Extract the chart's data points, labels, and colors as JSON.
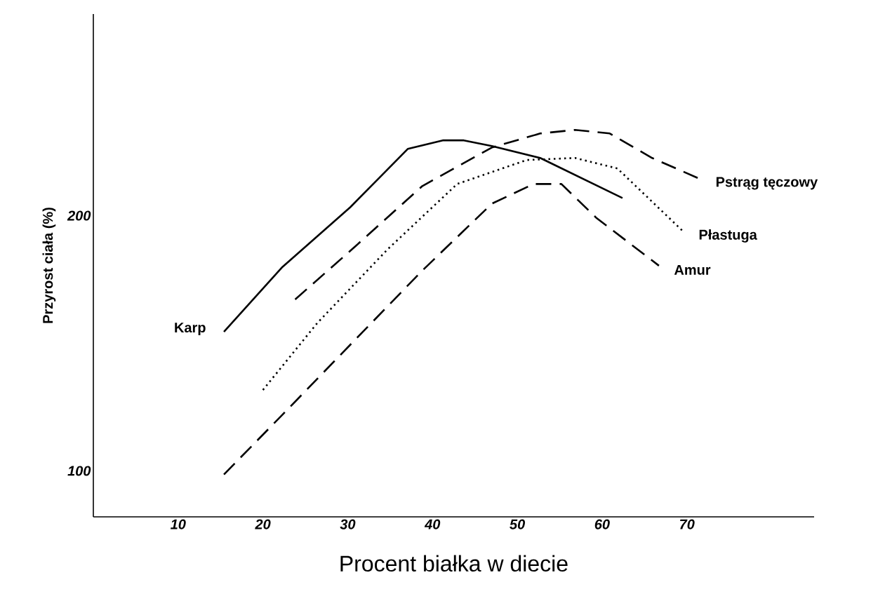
{
  "chart_data": {
    "type": "line",
    "xlabel": "Procent białka w diecie",
    "ylabel": "Przyrost ciała (%)",
    "xlim": [
      0,
      85
    ],
    "ylim": [
      82,
      279
    ],
    "xticks": [
      10,
      20,
      30,
      40,
      50,
      60,
      70
    ],
    "yticks": [
      100,
      200
    ],
    "grid": false,
    "marker": "none",
    "series": [
      {
        "name": "Karp",
        "color": "#000000",
        "line_style": "solid",
        "x": [
          15.4,
          22.3,
          30.3,
          37.1,
          41.2,
          43.7,
          47,
          52.7,
          62.4
        ],
        "values": [
          154.5,
          179.9,
          203.3,
          226.2,
          229.5,
          229.5,
          227.3,
          222.6,
          206.9
        ]
      },
      {
        "name": "Pstrąg tęczowy",
        "color": "#000000",
        "line_style": "dashed",
        "x": [
          23.8,
          30.5,
          38.8,
          47,
          52.7,
          56.8,
          60.9,
          65.9,
          71.6
        ],
        "values": [
          167.2,
          186.8,
          211.6,
          226.7,
          232.2,
          233.6,
          232.2,
          222.6,
          214.3
        ]
      },
      {
        "name": "Płastuga",
        "color": "#000000",
        "line_style": "dotted",
        "x": [
          20,
          26.4,
          34.7,
          42.9,
          51.1,
          56.8,
          61.8,
          69.6
        ],
        "values": [
          131.7,
          157.9,
          186.8,
          212.4,
          221.8,
          222.6,
          218.5,
          193.7
        ]
      },
      {
        "name": "Amur",
        "color": "#000000",
        "line_style": "dashed",
        "x": [
          15.4,
          22.3,
          30.5,
          38.8,
          47,
          51.9,
          55.2,
          59.3,
          66.7
        ],
        "values": [
          98.6,
          122,
          150.1,
          178.5,
          204.7,
          212.4,
          212.4,
          199.2,
          180.4
        ]
      }
    ]
  }
}
